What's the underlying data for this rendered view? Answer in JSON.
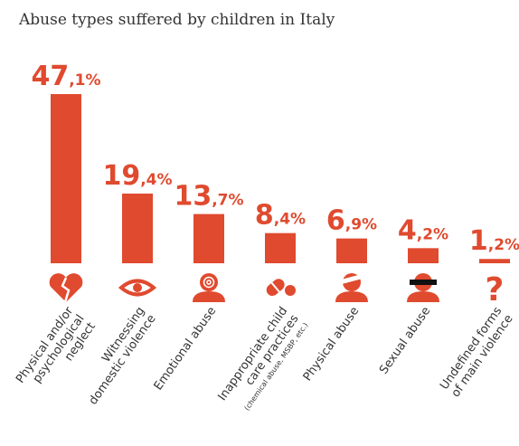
{
  "title": "Abuse types suffered by children in Italy",
  "colors": {
    "accent": "#E04A2F",
    "text": "#333333"
  },
  "chart_data": {
    "type": "bar",
    "ylim": [
      0,
      50
    ],
    "items": [
      {
        "value": 47.1,
        "int": "47",
        "dec": ",1%",
        "lines": [
          "Physical and/or",
          "psychological",
          "neglect"
        ],
        "sub": "",
        "icon": "broken-heart-icon"
      },
      {
        "value": 19.4,
        "int": "19",
        "dec": ",4%",
        "lines": [
          "Witnessing",
          "domestic violence"
        ],
        "sub": "",
        "icon": "eye-icon"
      },
      {
        "value": 13.7,
        "int": "13",
        "dec": ",7%",
        "lines": [
          "Emotional abuse"
        ],
        "sub": "",
        "icon": "spiral-head-icon"
      },
      {
        "value": 8.4,
        "int": "8",
        "dec": ",4%",
        "lines": [
          "Inappropriate child",
          "care practices"
        ],
        "sub": "(chemical abuse, MSBP, etc.)",
        "icon": "pill-icon"
      },
      {
        "value": 6.9,
        "int": "6",
        "dec": ",9%",
        "lines": [
          "Physical abuse"
        ],
        "sub": "",
        "icon": "bandaged-head-icon"
      },
      {
        "value": 4.2,
        "int": "4",
        "dec": ",2%",
        "lines": [
          "Sexual abuse"
        ],
        "sub": "",
        "icon": "censored-head-icon"
      },
      {
        "value": 1.2,
        "int": "1",
        "dec": ",2%",
        "lines": [
          "Undefined forms",
          "of main violence"
        ],
        "sub": "",
        "icon": "question-mark-icon"
      }
    ]
  }
}
